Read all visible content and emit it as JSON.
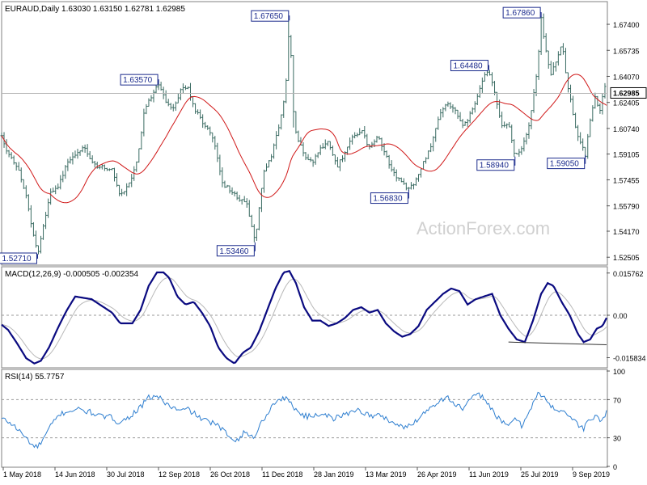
{
  "chart_data": [
    {
      "type": "candlestick",
      "header": "EURAUD,Daily  1.63030 1.63150 1.62781 1.62985",
      "symbol": "EURAUD",
      "timeframe": "Daily",
      "last_ohlc": {
        "open": 1.6303,
        "high": 1.6315,
        "low": 1.62781,
        "close": 1.62985
      },
      "current_price_label": "1.62985",
      "y_ticks": [
        "1.67400",
        "1.65735",
        "1.64070",
        "1.62405",
        "1.60740",
        "1.59105",
        "1.57455",
        "1.55790",
        "1.54170",
        "1.52505"
      ],
      "ylim": [
        1.52,
        1.6885
      ],
      "x_ticks": [
        "1 May 2018",
        "14 Jun 2018",
        "30 Jul 2018",
        "12 Sep 2018",
        "26 Oct 2018",
        "11 Dec 2018",
        "28 Jan 2019",
        "13 Mar 2019",
        "26 Apr 2019",
        "11 Jun 2019",
        "25 Jul 2019",
        "9 Sep 2019"
      ],
      "price_path": [
        [
          0,
          1.604
        ],
        [
          4,
          1.595
        ],
        [
          10,
          1.589
        ],
        [
          20,
          1.582
        ],
        [
          30,
          1.565
        ],
        [
          38,
          1.542
        ],
        [
          44,
          1.5271
        ],
        [
          50,
          1.542
        ],
        [
          60,
          1.567
        ],
        [
          70,
          1.571
        ],
        [
          80,
          1.585
        ],
        [
          90,
          1.59
        ],
        [
          100,
          1.596
        ],
        [
          110,
          1.585
        ],
        [
          120,
          1.583
        ],
        [
          135,
          1.581
        ],
        [
          145,
          1.565
        ],
        [
          155,
          1.571
        ],
        [
          165,
          1.585
        ],
        [
          175,
          1.62
        ],
        [
          185,
          1.63
        ],
        [
          192,
          1.6357
        ],
        [
          200,
          1.625
        ],
        [
          210,
          1.62
        ],
        [
          220,
          1.633
        ],
        [
          228,
          1.633
        ],
        [
          235,
          1.621
        ],
        [
          245,
          1.612
        ],
        [
          255,
          1.605
        ],
        [
          262,
          1.595
        ],
        [
          270,
          1.572
        ],
        [
          280,
          1.568
        ],
        [
          290,
          1.562
        ],
        [
          300,
          1.56
        ],
        [
          310,
          1.5346
        ],
        [
          320,
          1.578
        ],
        [
          330,
          1.59
        ],
        [
          340,
          1.61
        ],
        [
          347,
          1.63
        ],
        [
          352,
          1.6765
        ],
        [
          358,
          1.608
        ],
        [
          370,
          1.59
        ],
        [
          380,
          1.585
        ],
        [
          390,
          1.594
        ],
        [
          400,
          1.599
        ],
        [
          410,
          1.583
        ],
        [
          420,
          1.592
        ],
        [
          430,
          1.602
        ],
        [
          440,
          1.606
        ],
        [
          450,
          1.595
        ],
        [
          460,
          1.602
        ],
        [
          470,
          1.59
        ],
        [
          480,
          1.578
        ],
        [
          490,
          1.573
        ],
        [
          498,
          1.5683
        ],
        [
          505,
          1.572
        ],
        [
          515,
          1.585
        ],
        [
          525,
          1.595
        ],
        [
          535,
          1.615
        ],
        [
          545,
          1.623
        ],
        [
          555,
          1.618
        ],
        [
          565,
          1.608
        ],
        [
          575,
          1.618
        ],
        [
          583,
          1.63
        ],
        [
          590,
          1.64
        ],
        [
          596,
          1.6448
        ],
        [
          605,
          1.625
        ],
        [
          612,
          1.608
        ],
        [
          620,
          1.61
        ],
        [
          628,
          1.5894
        ],
        [
          636,
          1.595
        ],
        [
          644,
          1.605
        ],
        [
          650,
          1.625
        ],
        [
          656,
          1.65
        ],
        [
          660,
          1.6786
        ],
        [
          666,
          1.656
        ],
        [
          672,
          1.642
        ],
        [
          680,
          1.653
        ],
        [
          686,
          1.662
        ],
        [
          692,
          1.635
        ],
        [
          698,
          1.62
        ],
        [
          704,
          1.602
        ],
        [
          710,
          1.598
        ],
        [
          714,
          1.5905
        ],
        [
          720,
          1.613
        ],
        [
          726,
          1.628
        ],
        [
          732,
          1.618
        ],
        [
          737,
          1.635
        ],
        [
          740,
          1.6298
        ]
      ],
      "annotations": [
        {
          "label": "1.52710",
          "value": 1.5271
        },
        {
          "label": "1.63570",
          "value": 1.6357
        },
        {
          "label": "1.53460",
          "value": 1.5346
        },
        {
          "label": "1.67650",
          "value": 1.6765
        },
        {
          "label": "1.56830",
          "value": 1.5683
        },
        {
          "label": "1.64480",
          "value": 1.6448
        },
        {
          "label": "1.58940",
          "value": 1.5894
        },
        {
          "label": "1.67860",
          "value": 1.6786
        },
        {
          "label": "1.59050",
          "value": 1.5905
        }
      ],
      "watermark": "ActionForex.com",
      "colors": {
        "candle": "#3a6b62",
        "ma": "#d01818",
        "grid": "#b4b4b4",
        "annotation": "#1a2a8c",
        "label_fill": "#ffffff"
      }
    },
    {
      "type": "line",
      "name": "MACD",
      "label": "MACD(12,26,9) -0.000505 -0.002354",
      "y_ticks": [
        "0.015762",
        "0.00",
        "-0.015834"
      ],
      "ylim": [
        -0.019,
        0.0175
      ],
      "macd_path": [
        [
          0,
          -0.0035
        ],
        [
          8,
          -0.0055
        ],
        [
          20,
          -0.011
        ],
        [
          30,
          -0.016
        ],
        [
          40,
          -0.018
        ],
        [
          48,
          -0.017
        ],
        [
          58,
          -0.012
        ],
        [
          70,
          -0.004
        ],
        [
          80,
          0.002
        ],
        [
          90,
          0.007
        ],
        [
          100,
          0.0065
        ],
        [
          110,
          0.006
        ],
        [
          120,
          0.004
        ],
        [
          135,
          0.001
        ],
        [
          145,
          -0.003
        ],
        [
          160,
          -0.003
        ],
        [
          170,
          0.002
        ],
        [
          180,
          0.011
        ],
        [
          190,
          0.016
        ],
        [
          198,
          0.016
        ],
        [
          205,
          0.014
        ],
        [
          215,
          0.007
        ],
        [
          225,
          0.004
        ],
        [
          235,
          0.005
        ],
        [
          245,
          0.001
        ],
        [
          255,
          -0.004
        ],
        [
          265,
          -0.012
        ],
        [
          275,
          -0.016
        ],
        [
          285,
          -0.018
        ],
        [
          295,
          -0.014
        ],
        [
          305,
          -0.012
        ],
        [
          315,
          -0.006
        ],
        [
          325,
          0.002
        ],
        [
          335,
          0.01
        ],
        [
          345,
          0.016
        ],
        [
          352,
          0.0165
        ],
        [
          360,
          0.012
        ],
        [
          370,
          0.003
        ],
        [
          380,
          -0.002
        ],
        [
          390,
          -0.002
        ],
        [
          400,
          -0.004
        ],
        [
          410,
          -0.003
        ],
        [
          420,
          -0.001
        ],
        [
          430,
          0.002
        ],
        [
          440,
          0.003
        ],
        [
          450,
          0.001
        ],
        [
          460,
          0.002
        ],
        [
          470,
          -0.003
        ],
        [
          480,
          -0.006
        ],
        [
          490,
          -0.008
        ],
        [
          500,
          -0.007
        ],
        [
          510,
          -0.004
        ],
        [
          520,
          0.002
        ],
        [
          530,
          0.005
        ],
        [
          540,
          0.008
        ],
        [
          550,
          0.01
        ],
        [
          560,
          0.009
        ],
        [
          570,
          0.004
        ],
        [
          580,
          0.006
        ],
        [
          590,
          0.007
        ],
        [
          600,
          0.008
        ],
        [
          610,
          0.0
        ],
        [
          620,
          -0.005
        ],
        [
          630,
          -0.009
        ],
        [
          640,
          -0.01
        ],
        [
          650,
          -0.002
        ],
        [
          660,
          0.008
        ],
        [
          668,
          0.012
        ],
        [
          675,
          0.011
        ],
        [
          685,
          0.005
        ],
        [
          695,
          0.0
        ],
        [
          705,
          -0.007
        ],
        [
          712,
          -0.01
        ],
        [
          720,
          -0.009
        ],
        [
          728,
          -0.005
        ],
        [
          735,
          -0.004
        ],
        [
          740,
          -0.001
        ]
      ],
      "divergence_line": [
        [
          620,
          -0.01
        ],
        [
          740,
          -0.011
        ]
      ],
      "colors": {
        "macd": "#0a0a80",
        "signal": "#b8b8b8",
        "zero": "#9a9a9a"
      }
    },
    {
      "type": "line",
      "name": "RSI",
      "label": "RSI(14) 55.7757",
      "y_ticks": [
        "100",
        "70",
        "30",
        "0"
      ],
      "ylim": [
        0,
        100
      ],
      "levels": [
        70,
        30
      ],
      "rsi_path": [
        [
          0,
          50
        ],
        [
          8,
          47
        ],
        [
          16,
          42
        ],
        [
          24,
          35
        ],
        [
          32,
          28
        ],
        [
          40,
          20
        ],
        [
          46,
          22
        ],
        [
          54,
          33
        ],
        [
          62,
          45
        ],
        [
          72,
          55
        ],
        [
          82,
          58
        ],
        [
          92,
          60
        ],
        [
          102,
          58
        ],
        [
          112,
          56
        ],
        [
          122,
          52
        ],
        [
          132,
          52
        ],
        [
          142,
          47
        ],
        [
          152,
          49
        ],
        [
          160,
          55
        ],
        [
          170,
          62
        ],
        [
          180,
          72
        ],
        [
          190,
          74
        ],
        [
          198,
          68
        ],
        [
          208,
          62
        ],
        [
          218,
          58
        ],
        [
          228,
          60
        ],
        [
          238,
          54
        ],
        [
          248,
          48
        ],
        [
          258,
          46
        ],
        [
          268,
          40
        ],
        [
          278,
          32
        ],
        [
          288,
          28
        ],
        [
          298,
          36
        ],
        [
          308,
          30
        ],
        [
          318,
          46
        ],
        [
          328,
          60
        ],
        [
          338,
          70
        ],
        [
          346,
          72
        ],
        [
          354,
          66
        ],
        [
          364,
          56
        ],
        [
          374,
          52
        ],
        [
          384,
          54
        ],
        [
          394,
          56
        ],
        [
          404,
          50
        ],
        [
          414,
          52
        ],
        [
          424,
          56
        ],
        [
          434,
          60
        ],
        [
          444,
          56
        ],
        [
          454,
          52
        ],
        [
          464,
          54
        ],
        [
          474,
          48
        ],
        [
          484,
          44
        ],
        [
          494,
          40
        ],
        [
          504,
          46
        ],
        [
          514,
          54
        ],
        [
          524,
          62
        ],
        [
          534,
          68
        ],
        [
          544,
          73
        ],
        [
          554,
          66
        ],
        [
          564,
          60
        ],
        [
          574,
          70
        ],
        [
          584,
          76
        ],
        [
          594,
          68
        ],
        [
          604,
          54
        ],
        [
          612,
          46
        ],
        [
          620,
          42
        ],
        [
          628,
          52
        ],
        [
          636,
          42
        ],
        [
          646,
          60
        ],
        [
          656,
          76
        ],
        [
          664,
          72
        ],
        [
          672,
          62
        ],
        [
          680,
          60
        ],
        [
          688,
          58
        ],
        [
          696,
          52
        ],
        [
          704,
          44
        ],
        [
          712,
          40
        ],
        [
          720,
          50
        ],
        [
          728,
          52
        ],
        [
          734,
          48
        ],
        [
          740,
          56
        ]
      ],
      "colors": {
        "rsi": "#2f7fd0",
        "level": "#9a9a9a"
      }
    }
  ]
}
